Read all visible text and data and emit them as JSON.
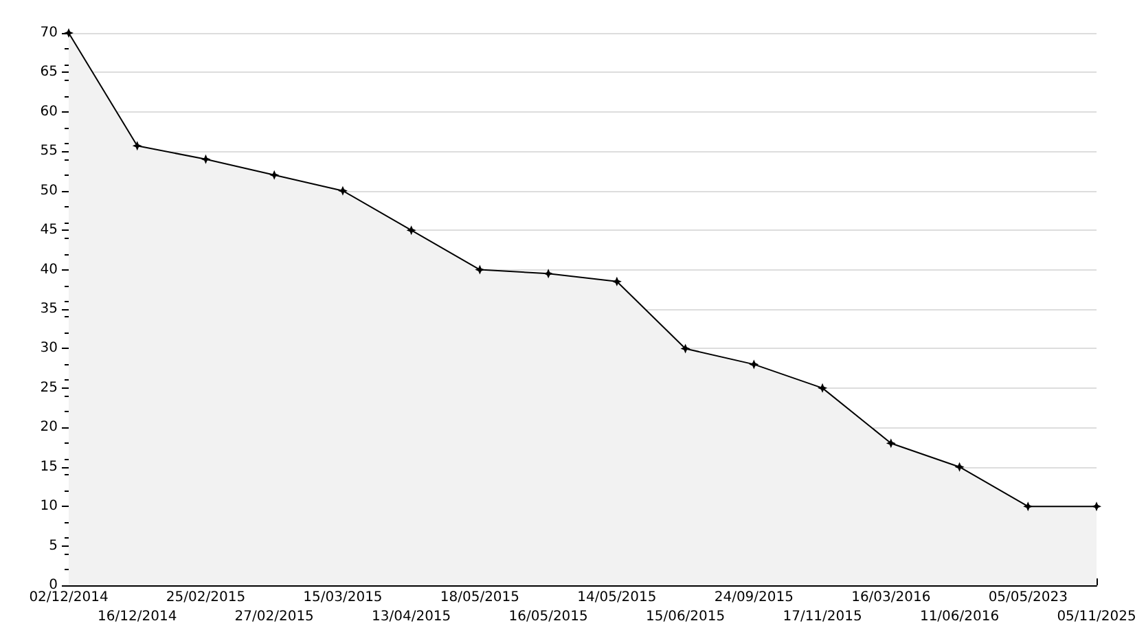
{
  "chart_data": {
    "type": "area",
    "categories": [
      "02/12/2014",
      "16/12/2014",
      "25/02/2015",
      "27/02/2015",
      "15/03/2015",
      "13/04/2015",
      "18/05/2015",
      "16/05/2015",
      "14/05/2015",
      "15/06/2015",
      "24/09/2015",
      "17/11/2015",
      "16/03/2016",
      "11/06/2016",
      "05/05/2023",
      "05/11/2025"
    ],
    "series": [
      {
        "color": "#000000",
        "values": [
          70,
          55.7,
          54,
          52,
          50,
          45,
          40,
          39.5,
          38.5,
          30,
          28,
          25,
          18,
          15,
          10,
          10
        ]
      }
    ],
    "ylim": [
      0,
      70
    ],
    "yticks": [
      0,
      5,
      10,
      15,
      20,
      25,
      30,
      35,
      40,
      45,
      50,
      55,
      60,
      65,
      70
    ],
    "grid": "y",
    "marker": "star",
    "line_style": "solid"
  }
}
